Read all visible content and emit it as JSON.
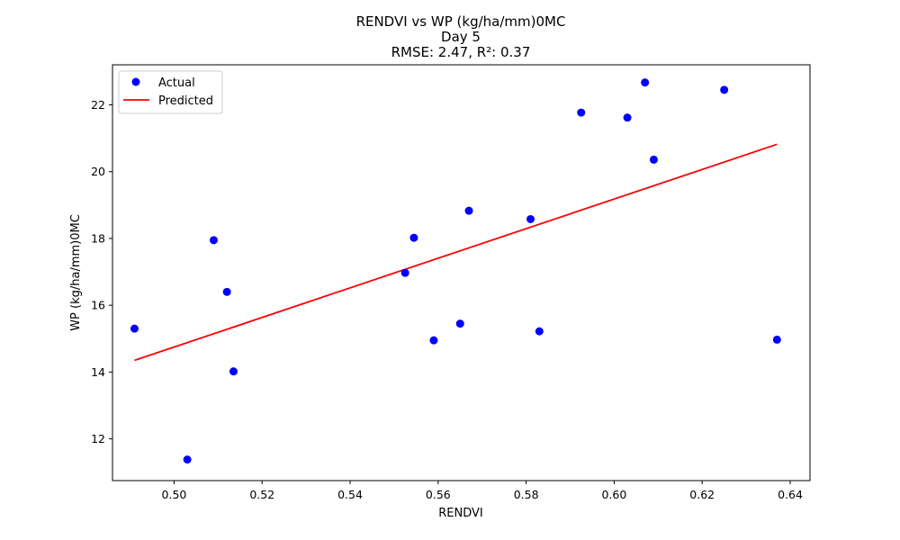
{
  "chart_data": {
    "type": "scatter",
    "title_lines": [
      "RENDVI vs WP (kg/ha/mm)0MC",
      "Day 5",
      "RMSE: 2.47, R²: 0.37"
    ],
    "xlabel": "RENDVI",
    "ylabel": "WP (kg/ha/mm)0MC",
    "xlim": [
      0.486,
      0.6445
    ],
    "ylim": [
      10.75,
      23.2
    ],
    "x_ticks": [
      0.5,
      0.52,
      0.54,
      0.56,
      0.58,
      0.6,
      0.62,
      0.64
    ],
    "x_tick_labels": [
      "0.50",
      "0.52",
      "0.54",
      "0.56",
      "0.58",
      "0.60",
      "0.62",
      "0.64"
    ],
    "y_ticks": [
      12,
      14,
      16,
      18,
      20,
      22
    ],
    "y_tick_labels": [
      "12",
      "14",
      "16",
      "18",
      "20",
      "22"
    ],
    "grid": false,
    "legend_position": "top-left",
    "series": [
      {
        "name": "Actual",
        "kind": "scatter",
        "color": "#0000ff",
        "points": [
          [
            0.491,
            15.3
          ],
          [
            0.503,
            11.38
          ],
          [
            0.509,
            17.95
          ],
          [
            0.512,
            16.4
          ],
          [
            0.5135,
            14.02
          ],
          [
            0.5525,
            16.97
          ],
          [
            0.5545,
            18.02
          ],
          [
            0.559,
            14.95
          ],
          [
            0.565,
            15.45
          ],
          [
            0.567,
            18.83
          ],
          [
            0.581,
            18.58
          ],
          [
            0.583,
            15.22
          ],
          [
            0.5925,
            21.77
          ],
          [
            0.603,
            21.62
          ],
          [
            0.607,
            22.67
          ],
          [
            0.609,
            20.36
          ],
          [
            0.625,
            22.45
          ],
          [
            0.637,
            14.97
          ]
        ]
      },
      {
        "name": "Predicted",
        "kind": "line",
        "color": "#ff0000",
        "points": [
          [
            0.491,
            14.35
          ],
          [
            0.637,
            20.82
          ]
        ]
      }
    ]
  }
}
